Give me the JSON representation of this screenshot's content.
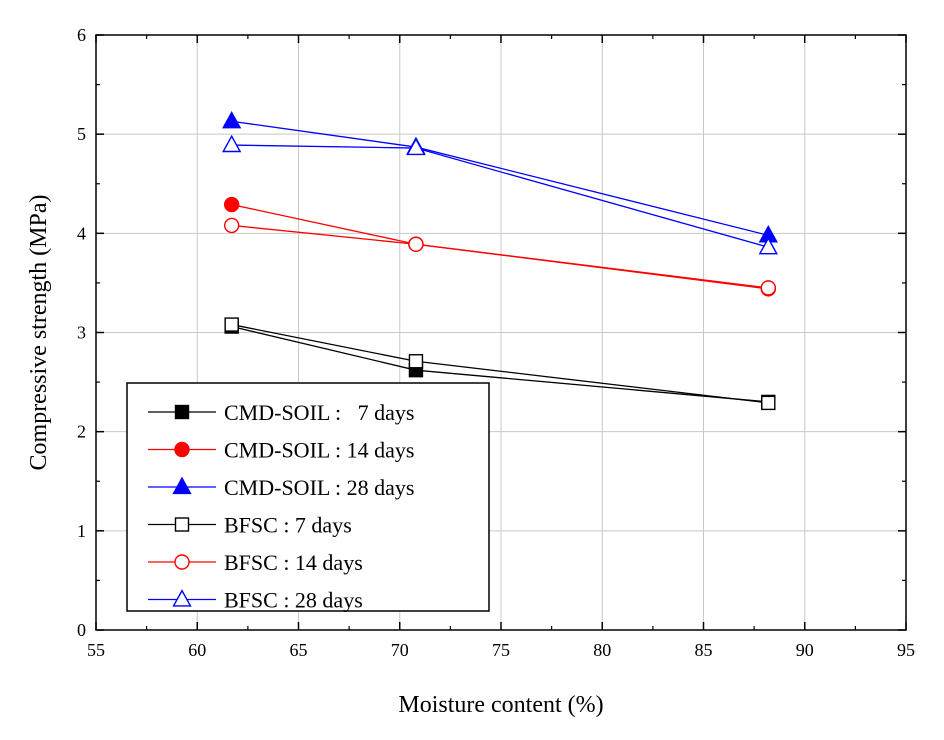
{
  "chart_data": {
    "type": "line",
    "xlabel": "Moisture content (%)",
    "ylabel": "Compressive strength (MPa)",
    "xlim": [
      55,
      95
    ],
    "ylim": [
      0,
      6
    ],
    "xticks": [
      "55",
      "60",
      "65",
      "70",
      "75",
      "80",
      "85",
      "90",
      "95"
    ],
    "yticks": [
      "0",
      "1",
      "2",
      "3",
      "4",
      "5",
      "6"
    ],
    "grid": true,
    "legend_position": "bottom-left",
    "series": [
      {
        "name": "CMD-SOIL :   7 days",
        "color": "#000000",
        "marker": "square",
        "filled": true,
        "x": [
          61.7,
          70.8,
          88.2
        ],
        "y": [
          3.06,
          2.62,
          2.3
        ]
      },
      {
        "name": "CMD-SOIL : 14 days",
        "color": "#ff0000",
        "marker": "circle",
        "filled": true,
        "x": [
          61.7,
          70.8,
          88.2
        ],
        "y": [
          4.29,
          3.89,
          3.44
        ]
      },
      {
        "name": "CMD-SOIL : 28 days",
        "color": "#0000ff",
        "marker": "triangle",
        "filled": true,
        "x": [
          61.7,
          70.8,
          88.2
        ],
        "y": [
          5.13,
          4.87,
          3.98
        ]
      },
      {
        "name": "BFSC : 7 days",
        "color": "#000000",
        "marker": "square",
        "filled": false,
        "x": [
          61.7,
          70.8,
          88.2
        ],
        "y": [
          3.08,
          2.71,
          2.29
        ]
      },
      {
        "name": "BFSC : 14 days",
        "color": "#ff0000",
        "marker": "circle",
        "filled": false,
        "x": [
          61.7,
          70.8,
          88.2
        ],
        "y": [
          4.08,
          3.89,
          3.45
        ]
      },
      {
        "name": "BFSC : 28 days",
        "color": "#0000ff",
        "marker": "triangle",
        "filled": false,
        "x": [
          61.7,
          70.8,
          88.2
        ],
        "y": [
          4.89,
          4.86,
          3.86
        ]
      }
    ]
  }
}
